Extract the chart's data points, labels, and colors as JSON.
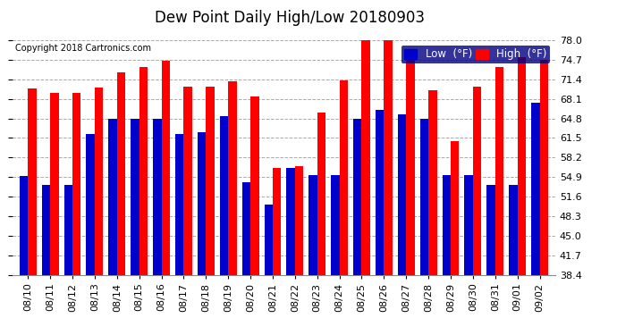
{
  "title": "Dew Point Daily High/Low 20180903",
  "copyright": "Copyright 2018 Cartronics.com",
  "ylim": [
    38.4,
    78.0
  ],
  "yticks": [
    38.4,
    41.7,
    45.0,
    48.3,
    51.6,
    54.9,
    58.2,
    61.5,
    64.8,
    68.1,
    71.4,
    74.7,
    78.0
  ],
  "dates": [
    "08/10",
    "08/11",
    "08/12",
    "08/13",
    "08/14",
    "08/15",
    "08/16",
    "08/17",
    "08/18",
    "08/19",
    "08/20",
    "08/21",
    "08/22",
    "08/23",
    "08/24",
    "08/25",
    "08/26",
    "08/27",
    "08/28",
    "08/29",
    "08/30",
    "08/31",
    "09/01",
    "09/02"
  ],
  "high": [
    69.8,
    69.1,
    69.1,
    70.0,
    72.5,
    73.4,
    74.5,
    70.2,
    70.2,
    71.0,
    68.5,
    56.5,
    56.8,
    65.8,
    71.2,
    78.0,
    78.1,
    75.2,
    69.5,
    61.0,
    70.2,
    73.4,
    75.2,
    74.7
  ],
  "low": [
    55.0,
    53.5,
    53.5,
    62.2,
    64.8,
    64.8,
    64.8,
    62.2,
    62.5,
    65.2,
    54.0,
    50.3,
    56.5,
    55.2,
    55.2,
    64.8,
    66.2,
    65.5,
    64.8,
    55.2,
    55.2,
    53.5,
    53.5,
    67.5
  ],
  "bar_color_high": "#ff0000",
  "bar_color_low": "#0000cc",
  "background_color": "#ffffff",
  "grid_color": "#aaaaaa",
  "title_fontsize": 12,
  "tick_fontsize": 8,
  "legend_high_label": "High  (°F)",
  "legend_low_label": "Low  (°F)",
  "legend_bg_low": "#0000cc",
  "legend_bg_high": "#ff0000"
}
